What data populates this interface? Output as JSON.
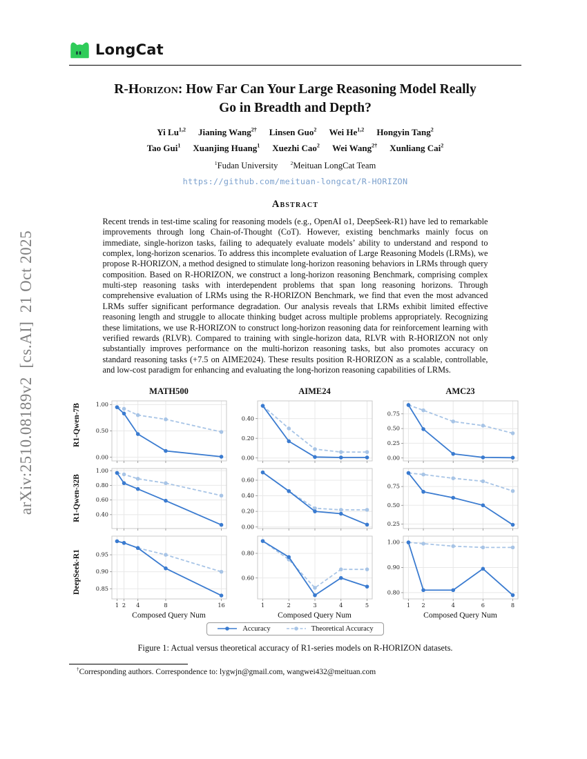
{
  "sidebar": {
    "arxiv_stamp": "arXiv:2510.08189v2  [cs.AI]  21 Oct 2025"
  },
  "header": {
    "logo_text": "LongCat",
    "logo_green": "#2fcc59"
  },
  "title": {
    "sc": "R-Horizon",
    "line1_rest": ": How Far Can Your Large Reasoning Model Really",
    "line2": "Go in Breadth and Depth?"
  },
  "authors": {
    "row1": [
      {
        "name": "Yi Lu",
        "sup": "1,2"
      },
      {
        "name": "Jianing Wang",
        "sup": "2†"
      },
      {
        "name": "Linsen Guo",
        "sup": "2"
      },
      {
        "name": "Wei He",
        "sup": "1,2"
      },
      {
        "name": "Hongyin Tang",
        "sup": "2"
      }
    ],
    "row2": [
      {
        "name": "Tao Gui",
        "sup": "1"
      },
      {
        "name": "Xuanjing Huang",
        "sup": "1"
      },
      {
        "name": "Xuezhi Cao",
        "sup": "2"
      },
      {
        "name": "Wei Wang",
        "sup": "2†"
      },
      {
        "name": "Xunliang Cai",
        "sup": "2"
      }
    ]
  },
  "affiliations": [
    {
      "sup": "1",
      "text": "Fudan University"
    },
    {
      "sup": "2",
      "text": "Meituan LongCat Team"
    }
  ],
  "link": {
    "text": "https://github.com/meituan-longcat/R-HORIZON"
  },
  "abstract": {
    "heading": "Abstract",
    "text": "Recent trends in test-time scaling for reasoning models (e.g., OpenAI o1, DeepSeek-R1) have led to remarkable improvements through long Chain-of-Thought (CoT). However, existing benchmarks mainly focus on immediate, single-horizon tasks, failing to adequately evaluate models’ ability to understand and respond to complex, long-horizon scenarios. To address this incomplete evaluation of Large Reasoning Models (LRMs), we propose R-HORIZON, a method designed to stimulate long-horizon reasoning behaviors in LRMs through query composition. Based on R-HORIZON, we construct a long-horizon reasoning Benchmark, comprising complex multi-step reasoning tasks with interdependent problems that span long reasoning horizons. Through comprehensive evaluation of LRMs using the R-HORIZON Benchmark, we find that even the most advanced LRMs suffer significant performance degradation. Our analysis reveals that LRMs exhibit limited effective reasoning length and struggle to allocate thinking budget across multiple problems appropriately. Recognizing these limitations, we use R-HORIZON to construct long-horizon reasoning data for reinforcement learning with verified rewards (RLVR). Compared to training with single-horizon data, RLVR with R-HORIZON not only substantially improves performance on the multi-horizon reasoning tasks, but also promotes accuracy on standard reasoning tasks (+7.5 on AIME2024). These results position R-HORIZON as a scalable, controllable, and low-cost paradigm for enhancing and evaluating the long-horizon reasoning capabilities of LRMs."
  },
  "figure": {
    "caption": "Figure 1: Actual versus theoretical accuracy of R1-series models on R-HORIZON datasets."
  },
  "footnote": {
    "sup": "†",
    "text": "Corresponding authors. Correspondence to: lygwjn@gmail.com, wangwei432@meituan.com"
  },
  "chart_data": {
    "type": "line",
    "columns": [
      "MATH500",
      "AIME24",
      "AMC23"
    ],
    "rows": [
      "R1-Qwen-7B",
      "R1-Qwen-32B",
      "DeepSeek-R1"
    ],
    "xlabel": "Composed Query Num",
    "legend": [
      {
        "name": "Accuracy",
        "style": "solid",
        "color": "#3A7BD0"
      },
      {
        "name": "Theoretical Accuracy",
        "style": "dashed",
        "color": "#A7C4E6"
      }
    ],
    "x_by_column": [
      [
        1,
        2,
        4,
        8,
        16
      ],
      [
        1,
        2,
        3,
        4,
        5
      ],
      [
        1,
        2,
        4,
        6,
        8
      ]
    ],
    "xticks_by_column": [
      [
        1,
        2,
        4,
        8,
        16
      ],
      [
        1,
        2,
        3,
        4,
        5
      ],
      [
        1,
        2,
        4,
        6,
        8
      ]
    ],
    "subplots": [
      {
        "row": "R1-Qwen-7B",
        "col": "MATH500",
        "accuracy": [
          0.95,
          0.83,
          0.44,
          0.12,
          0.01
        ],
        "theoretical": [
          0.95,
          0.92,
          0.8,
          0.72,
          0.48
        ],
        "yticks": [
          0.0,
          0.5,
          1.0
        ],
        "ylim": [
          -0.07,
          1.07
        ]
      },
      {
        "row": "R1-Qwen-7B",
        "col": "AIME24",
        "accuracy": [
          0.53,
          0.17,
          0.01,
          0.005,
          0.005
        ],
        "theoretical": [
          0.53,
          0.3,
          0.09,
          0.06,
          0.06
        ],
        "yticks": [
          0.0,
          0.2,
          0.4
        ],
        "ylim": [
          -0.03,
          0.58
        ]
      },
      {
        "row": "R1-Qwen-7B",
        "col": "AMC23",
        "accuracy": [
          0.9,
          0.49,
          0.07,
          0.01,
          0.005
        ],
        "theoretical": [
          0.9,
          0.81,
          0.62,
          0.55,
          0.42
        ],
        "yticks": [
          0.0,
          0.25,
          0.5,
          0.75
        ],
        "ylim": [
          -0.05,
          0.97
        ]
      },
      {
        "row": "R1-Qwen-32B",
        "col": "MATH500",
        "accuracy": [
          0.97,
          0.83,
          0.75,
          0.59,
          0.26
        ],
        "theoretical": [
          0.97,
          0.95,
          0.89,
          0.83,
          0.66
        ],
        "yticks": [
          0.4,
          0.6,
          0.8,
          1.0
        ],
        "ylim": [
          0.21,
          1.03
        ]
      },
      {
        "row": "R1-Qwen-32B",
        "col": "AIME24",
        "accuracy": [
          0.7,
          0.46,
          0.2,
          0.17,
          0.03
        ],
        "theoretical": [
          0.7,
          0.46,
          0.24,
          0.22,
          0.22
        ],
        "yticks": [
          0.0,
          0.2,
          0.4,
          0.6
        ],
        "ylim": [
          -0.02,
          0.75
        ]
      },
      {
        "row": "R1-Qwen-32B",
        "col": "AMC23",
        "accuracy": [
          0.93,
          0.68,
          0.6,
          0.5,
          0.24
        ],
        "theoretical": [
          0.93,
          0.91,
          0.86,
          0.82,
          0.69
        ],
        "yticks": [
          0.25,
          0.5,
          0.75
        ],
        "ylim": [
          0.19,
          0.99
        ]
      },
      {
        "row": "DeepSeek-R1",
        "col": "MATH500",
        "accuracy": [
          0.99,
          0.985,
          0.97,
          0.91,
          0.83
        ],
        "theoretical": [
          0.99,
          0.985,
          0.97,
          0.95,
          0.9
        ],
        "yticks": [
          0.85,
          0.9,
          0.95
        ],
        "ylim": [
          0.82,
          1.005
        ]
      },
      {
        "row": "DeepSeek-R1",
        "col": "AIME24",
        "accuracy": [
          0.9,
          0.77,
          0.46,
          0.6,
          0.53
        ],
        "theoretical": [
          0.9,
          0.75,
          0.52,
          0.67,
          0.67
        ],
        "yticks": [
          0.6,
          0.8
        ],
        "ylim": [
          0.43,
          0.94
        ]
      },
      {
        "row": "DeepSeek-R1",
        "col": "AMC23",
        "accuracy": [
          1.0,
          0.81,
          0.81,
          0.895,
          0.79
        ],
        "theoretical": [
          1.0,
          0.995,
          0.985,
          0.98,
          0.98
        ],
        "yticks": [
          0.8,
          0.9,
          1.0
        ],
        "ylim": [
          0.775,
          1.025
        ]
      }
    ]
  }
}
